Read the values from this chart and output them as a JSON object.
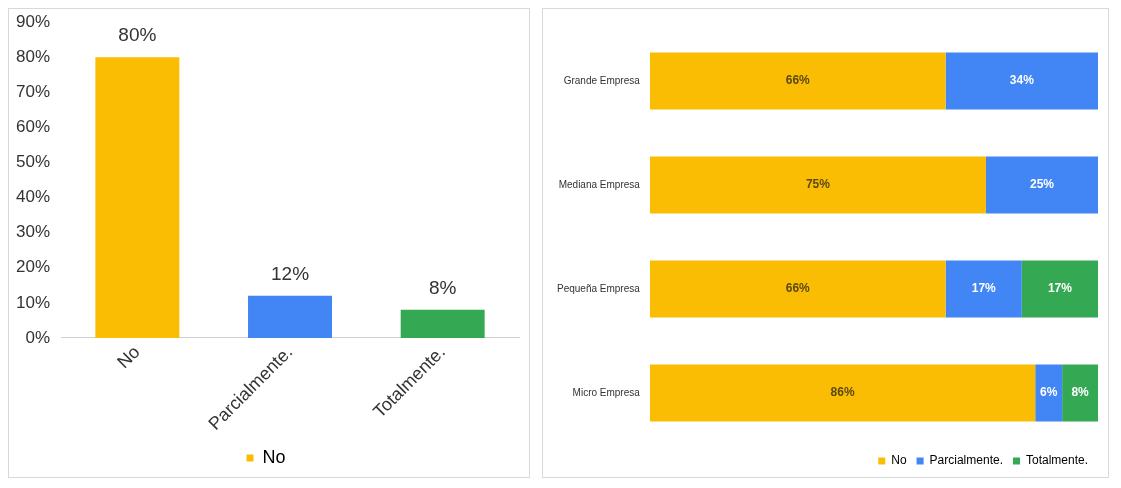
{
  "chart_data": [
    {
      "type": "bar",
      "categories": [
        "No",
        "Parcialmente.",
        "Totalmente."
      ],
      "series": [
        {
          "name": "No",
          "color": "#fbbc04",
          "colors": [
            "#fbbc04",
            "#4285f4",
            "#34a853"
          ],
          "values": [
            80,
            12,
            8
          ],
          "value_labels": [
            "80%",
            "12%",
            "8%"
          ]
        }
      ],
      "ylim": [
        0,
        90
      ],
      "yticks": [
        {
          "value": 0,
          "label": "0%"
        },
        {
          "value": 10,
          "label": "10%"
        },
        {
          "value": 20,
          "label": "20%"
        },
        {
          "value": 30,
          "label": "30%"
        },
        {
          "value": 40,
          "label": "40%"
        },
        {
          "value": 50,
          "label": "50%"
        },
        {
          "value": 60,
          "label": "60%"
        },
        {
          "value": 70,
          "label": "70%"
        },
        {
          "value": 80,
          "label": "80%"
        },
        {
          "value": 90,
          "label": "90%"
        }
      ],
      "grid": false,
      "legend": "bottom"
    },
    {
      "type": "bar",
      "orientation": "horizontal",
      "stacked": true,
      "categories": [
        "Grande Empresa",
        "Mediana Empresa",
        "Pequeña Empresa",
        "Micro Empresa"
      ],
      "series": [
        {
          "name": "No",
          "color": "#fbbc04",
          "values": [
            66,
            75,
            66,
            86
          ],
          "value_labels": [
            "66%",
            "75%",
            "66%",
            "86%"
          ]
        },
        {
          "name": "Parcialmente.",
          "color": "#4285f4",
          "values": [
            34,
            25,
            17,
            6
          ],
          "value_labels": [
            "34%",
            "25%",
            "17%",
            "6%"
          ]
        },
        {
          "name": "Totalmente.",
          "color": "#34a853",
          "values": [
            null,
            null,
            17,
            8
          ],
          "value_labels": [
            null,
            null,
            "17%",
            "8%"
          ]
        }
      ],
      "grid": false,
      "legend": "bottom",
      "tick_labels": "y"
    }
  ]
}
